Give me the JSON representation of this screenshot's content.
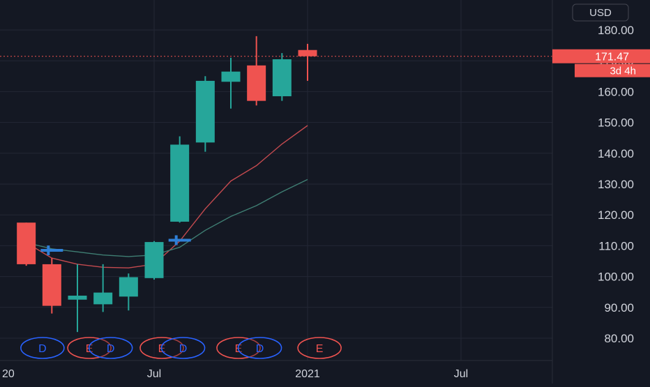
{
  "currency_button": "USD",
  "colors": {
    "background": "#141823",
    "grid": "#232735",
    "axis_text": "#d1d4dc",
    "up": "#26a69a",
    "down": "#ef5350",
    "ma_fast": "#c44a4f",
    "ma_slow": "#3f7e73",
    "dividend_marker": "#2962ff",
    "earnings_marker": "#ef5350",
    "split_marker": "#2f7fd6"
  },
  "price_label": {
    "value": "171.47",
    "countdown": "3d 4h"
  },
  "chart_data": {
    "type": "candlestick",
    "interval": "monthly",
    "y_ticks": [
      "180.00",
      "170.00",
      "160.00",
      "150.00",
      "140.00",
      "130.00",
      "120.00",
      "110.00",
      "100.00",
      "90.00",
      "80.00"
    ],
    "ylim": [
      76,
      184
    ],
    "x_tick_labels": [
      "20",
      "Jul",
      "2021",
      "Jul"
    ],
    "last_price": 171.47,
    "candles": [
      {
        "month": "2020-02",
        "open": 117.5,
        "high": 117.5,
        "low": 103.5,
        "close": 104
      },
      {
        "month": "2020-03",
        "open": 104,
        "high": 106,
        "low": 88,
        "close": 90.5
      },
      {
        "month": "2020-04",
        "open": 92.5,
        "high": 104,
        "low": 82,
        "close": 93.8
      },
      {
        "month": "2020-05",
        "open": 91,
        "high": 104,
        "low": 88.5,
        "close": 94.8
      },
      {
        "month": "2020-06",
        "open": 93.5,
        "high": 101,
        "low": 89,
        "close": 99.8
      },
      {
        "month": "2020-07",
        "open": 99.5,
        "high": 111.5,
        "low": 99,
        "close": 111.2
      },
      {
        "month": "2020-08",
        "open": 117.8,
        "high": 145.5,
        "low": 117.5,
        "close": 142.8
      },
      {
        "month": "2020-09",
        "open": 143.5,
        "high": 165,
        "low": 140.5,
        "close": 163.5
      },
      {
        "month": "2020-10",
        "open": 163.2,
        "high": 171,
        "low": 154.5,
        "close": 166.5
      },
      {
        "month": "2020-11",
        "open": 168.5,
        "high": 178,
        "low": 155.5,
        "close": 157
      },
      {
        "month": "2020-12",
        "open": 158.5,
        "high": 172.5,
        "low": 157,
        "close": 170.5
      },
      {
        "month": "2021-01",
        "open": 173.5,
        "high": 175.5,
        "low": 163.5,
        "close": 171.47
      }
    ],
    "moving_averages": [
      {
        "color_key": "ma_fast",
        "points": [
          [
            "2020-02",
            111
          ],
          [
            "2020-03",
            106
          ],
          [
            "2020-04",
            104
          ],
          [
            "2020-05",
            103
          ],
          [
            "2020-06",
            102.8
          ],
          [
            "2020-07",
            104
          ],
          [
            "2020-08",
            111.5
          ],
          [
            "2020-09",
            122
          ],
          [
            "2020-10",
            131
          ],
          [
            "2020-11",
            136
          ],
          [
            "2020-12",
            143
          ],
          [
            "2021-01",
            149
          ]
        ]
      },
      {
        "color_key": "ma_slow",
        "points": [
          [
            "2020-02",
            111
          ],
          [
            "2020-03",
            109
          ],
          [
            "2020-04",
            108
          ],
          [
            "2020-05",
            107
          ],
          [
            "2020-06",
            106.5
          ],
          [
            "2020-07",
            107
          ],
          [
            "2020-08",
            109.5
          ],
          [
            "2020-09",
            115
          ],
          [
            "2020-10",
            119.5
          ],
          [
            "2020-11",
            123
          ],
          [
            "2020-12",
            127.5
          ],
          [
            "2021-01",
            131.5
          ]
        ]
      }
    ],
    "split_markers": [
      {
        "month": "2020-03",
        "price": 108.5
      },
      {
        "month": "2020-08",
        "price": 111.8
      }
    ],
    "event_markers": [
      {
        "label": "D",
        "kind": "dividend",
        "date": "2020-02-20"
      },
      {
        "label": "E",
        "kind": "earnings",
        "date": "2020-04-15"
      },
      {
        "label": "D",
        "kind": "dividend",
        "date": "2020-05-10"
      },
      {
        "label": "E",
        "kind": "earnings",
        "date": "2020-07-10"
      },
      {
        "label": "D",
        "kind": "dividend",
        "date": "2020-08-05"
      },
      {
        "label": "E",
        "kind": "earnings",
        "date": "2020-10-10"
      },
      {
        "label": "D",
        "kind": "dividend",
        "date": "2020-11-05"
      },
      {
        "label": "E",
        "kind": "earnings",
        "date": "2021-01-15"
      }
    ]
  }
}
